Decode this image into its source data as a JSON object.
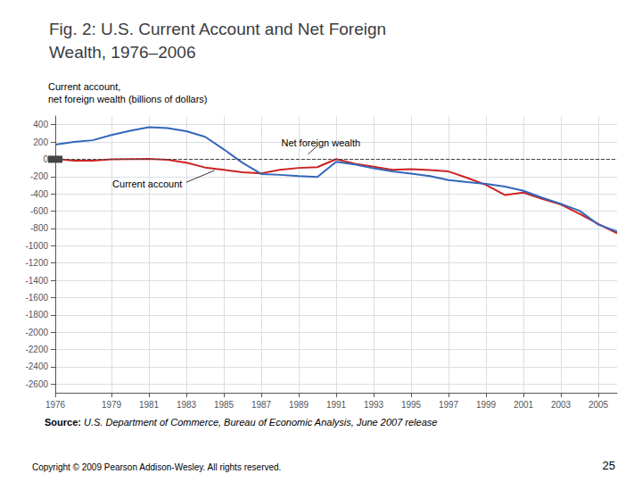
{
  "chart_data": {
    "type": "line",
    "title": "Fig. 2: U.S. Current Account and Net Foreign\nWealth, 1976–2006",
    "ylabel": "Current account,\nnet foreign wealth (billions of dollars)",
    "source": "Source: U.S. Department of Commerce, Bureau of Economic Analysis, June 2007 release",
    "copyright": "Copyright © 2009 Pearson Addison-Wesley. All rights reserved.",
    "page_number": "25",
    "x": [
      1976,
      1977,
      1978,
      1979,
      1980,
      1981,
      1982,
      1983,
      1984,
      1985,
      1986,
      1987,
      1988,
      1989,
      1990,
      1991,
      1992,
      1993,
      1994,
      1995,
      1996,
      1997,
      1998,
      1999,
      2000,
      2001,
      2002,
      2003,
      2004,
      2005,
      2006
    ],
    "series": [
      {
        "name": "Current account",
        "color": "#cc2222",
        "values": [
          4,
          -15,
          -16,
          -1,
          2,
          5,
          -5,
          -40,
          -95,
          -122,
          -150,
          -162,
          -122,
          -100,
          -91,
          2,
          -51,
          -85,
          -122,
          -114,
          -125,
          -141,
          -215,
          -296,
          -413,
          -385,
          -459,
          -523,
          -631,
          -748,
          -857
        ]
      },
      {
        "name": "Net foreign wealth",
        "color": "#3366bb",
        "values": [
          170,
          200,
          220,
          280,
          330,
          370,
          360,
          325,
          260,
          115,
          -40,
          -170,
          -180,
          -195,
          -205,
          -30,
          -60,
          -105,
          -140,
          -165,
          -195,
          -240,
          -265,
          -285,
          -315,
          -365,
          -445,
          -515,
          -595,
          -755,
          -835
        ]
      }
    ],
    "xlim": [
      1976,
      2006
    ],
    "xticks": [
      1976,
      1979,
      1981,
      1983,
      1985,
      1987,
      1989,
      1991,
      1993,
      1995,
      1997,
      1999,
      2001,
      2003,
      2005
    ],
    "ylim": [
      -2700,
      500
    ],
    "yticks": [
      400,
      200,
      0,
      -200,
      -400,
      -600,
      -800,
      -1000,
      -1200,
      -1400,
      -1600,
      -1800,
      -2000,
      -2200,
      -2400,
      -2600
    ],
    "grid": true,
    "reference_lines": [
      {
        "y": 0,
        "line_style": "dashed"
      }
    ],
    "annotations": [
      {
        "text": "Net foreign wealth",
        "x": 1989.5,
        "y": 60,
        "text_x": 1990,
        "text_y": 155
      },
      {
        "text": "Current account",
        "x": 1984.5,
        "y": -130,
        "text_x": 1983,
        "text_y": -265
      }
    ]
  }
}
